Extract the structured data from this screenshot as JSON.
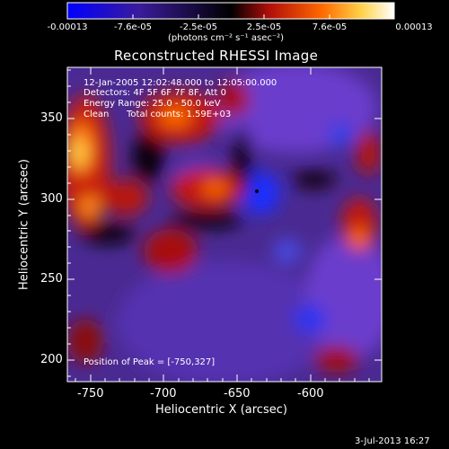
{
  "colorbar": {
    "ticks": [
      "-0.00013",
      "-7.6e-05",
      "-2.5e-05",
      "2.5e-05",
      "7.6e-05",
      "0.00013"
    ],
    "units_label": "(photons cm⁻² s⁻¹ asec⁻²)",
    "colors": [
      "#0000ff",
      "#3a1b9a",
      "#000000",
      "#b30f0a",
      "#ff6a00",
      "#ffd24a",
      "#ffffff"
    ]
  },
  "chart_data": {
    "type": "heatmap",
    "title": "Reconstructed RHESSI Image",
    "xlabel": "Heliocentric X (arcsec)",
    "ylabel": "Heliocentric Y (arcsec)",
    "xlim": [
      -760,
      -627
    ],
    "ylim": [
      187,
      373
    ],
    "x_ticks": [
      -750,
      -700,
      -650,
      -600
    ],
    "y_ticks": [
      200,
      250,
      300,
      350
    ],
    "x_tick_labels": [
      "-750",
      "-700",
      "-650",
      "-600"
    ],
    "y_tick_labels": [
      "200",
      "250",
      "300",
      "350"
    ],
    "peak_position": [
      -750,
      327
    ]
  },
  "info": {
    "time_range": "12-Jan-2005 12:02:48.000 to 12:05:00.000",
    "detectors": "Detectors: 4F 5F 6F 7F 8F, Att 0",
    "energy": "Energy Range: 25.0 - 50.0 keV",
    "clean": "Clean",
    "counts": "Total counts: 1.59E+03",
    "peak": "Position of Peak = [-750,327]"
  },
  "footer": {
    "date": "3-Jul-2013 16:27"
  }
}
